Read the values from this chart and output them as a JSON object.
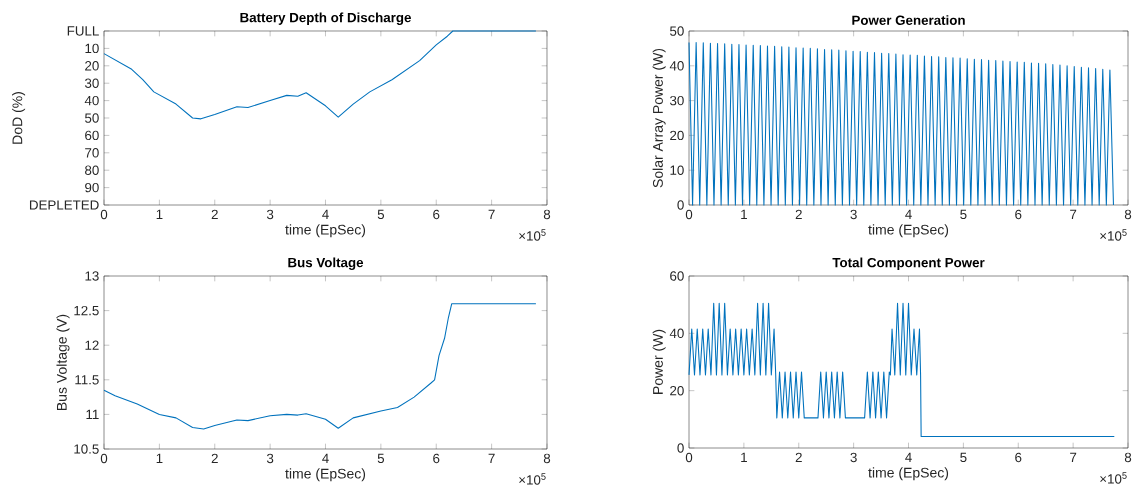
{
  "chart_data": [
    {
      "type": "line",
      "title": "Battery Depth of Discharge",
      "xlabel": "time (EpSec)",
      "ylabel": "DoD (%)",
      "color": "#0072bd",
      "xlim": [
        0,
        8
      ],
      "xticks": [
        0,
        1,
        2,
        3,
        4,
        5,
        6,
        7,
        8
      ],
      "ylim": [
        100,
        0
      ],
      "yticks": [
        {
          "value": 0,
          "label": "FULL"
        },
        10,
        20,
        30,
        40,
        50,
        60,
        70,
        80,
        90,
        {
          "value": 100,
          "label": "DEPLETED"
        }
      ],
      "annotations": [
        "×10$^{5}$"
      ],
      "x": [
        0,
        0.5,
        0.7,
        0.9,
        1.3,
        1.6,
        1.75,
        2.0,
        2.4,
        2.6,
        3.0,
        3.3,
        3.5,
        3.65,
        4.0,
        4.23,
        4.5,
        4.8,
        5.2,
        5.7,
        6.0,
        6.2,
        6.3,
        7.8
      ],
      "values": [
        13,
        22,
        28,
        35,
        42,
        50,
        50.5,
        48,
        43.5,
        44,
        40,
        37,
        37.5,
        35.5,
        43,
        49.5,
        42,
        35,
        28,
        17,
        8,
        3,
        0,
        0
      ]
    },
    {
      "type": "line",
      "title": "Power Generation",
      "xlabel": "time (EpSec)",
      "ylabel": "Solar Array Power (W)",
      "color": "#0072bd",
      "xlim": [
        0,
        8
      ],
      "xticks": [
        0,
        1,
        2,
        3,
        4,
        5,
        6,
        7,
        8
      ],
      "ylim": [
        0,
        50
      ],
      "yticks": [
        0,
        10,
        20,
        30,
        40,
        50
      ],
      "annotations": [
        "×10$^{5}$"
      ],
      "x": [
        0,
        0.065,
        0.13,
        0.195,
        0.26,
        0.325,
        0.39,
        0.455,
        0.52,
        0.585,
        0.65,
        0.715,
        0.78,
        0.845,
        0.91,
        0.975,
        1.04,
        1.105,
        1.17,
        1.235,
        1.3,
        1.365,
        1.43,
        1.495,
        1.56,
        1.625,
        1.69,
        1.755,
        1.82,
        1.885,
        1.95,
        2.015,
        2.08,
        2.145,
        2.21,
        2.275,
        2.34,
        2.405,
        2.47,
        2.535,
        2.6,
        2.665,
        2.73,
        2.795,
        2.86,
        2.925,
        2.99,
        3.055,
        3.12,
        3.185,
        3.25,
        3.315,
        3.38,
        3.445,
        3.51,
        3.575,
        3.64,
        3.705,
        3.77,
        3.835,
        3.9,
        3.965,
        4.03,
        4.095,
        4.16,
        4.225,
        4.29,
        4.355,
        4.42,
        4.485,
        4.55,
        4.615,
        4.68,
        4.745,
        4.81,
        4.875,
        4.94,
        5.005,
        5.07,
        5.135,
        5.2,
        5.265,
        5.33,
        5.395,
        5.46,
        5.525,
        5.59,
        5.655,
        5.72,
        5.785,
        5.85,
        5.915,
        5.98,
        6.045,
        6.11,
        6.175,
        6.24,
        6.305,
        6.37,
        6.435,
        6.5,
        6.565,
        6.63,
        6.695,
        6.76,
        6.825,
        6.89,
        6.955,
        7.02,
        7.085,
        7.15,
        7.215,
        7.28,
        7.345,
        7.41,
        7.475,
        7.54,
        7.605,
        7.67,
        7.735
      ],
      "values": [
        46.7,
        0,
        46.7,
        0,
        46.6,
        0,
        46.5,
        0,
        46.4,
        0,
        46.3,
        0,
        46.2,
        0,
        46.1,
        0,
        46.0,
        0,
        45.9,
        0,
        45.8,
        0,
        45.7,
        0,
        45.6,
        0,
        45.5,
        0,
        45.4,
        0,
        45.2,
        0,
        45.1,
        0,
        45.0,
        0,
        44.9,
        0,
        44.7,
        0,
        44.6,
        0,
        44.5,
        0,
        44.3,
        0,
        44.2,
        0,
        44.1,
        0,
        43.9,
        0,
        43.8,
        0,
        43.6,
        0,
        43.5,
        0,
        43.4,
        0,
        43.2,
        0,
        43.1,
        0,
        43.0,
        0,
        42.8,
        0,
        42.7,
        0,
        42.6,
        0,
        42.4,
        0,
        42.3,
        0,
        42.2,
        0,
        42.0,
        0,
        41.9,
        0,
        41.8,
        0,
        41.6,
        0,
        41.5,
        0,
        41.4,
        0,
        41.2,
        0,
        41.1,
        0,
        41.0,
        0,
        40.8,
        0,
        40.7,
        0,
        40.6,
        0,
        40.4,
        0,
        40.2,
        0,
        40.0,
        0,
        39.8,
        0,
        39.6,
        0,
        39.4,
        0,
        39.2,
        0,
        39.0,
        0,
        38.8,
        0
      ]
    },
    {
      "type": "line",
      "title": "Bus Voltage",
      "xlabel": "time (EpSec)",
      "ylabel": "Bus Voltage (V)",
      "color": "#0072bd",
      "xlim": [
        0,
        8
      ],
      "xticks": [
        0,
        1,
        2,
        3,
        4,
        5,
        6,
        7,
        8
      ],
      "ylim": [
        10.5,
        13
      ],
      "yticks": [
        10.5,
        11,
        11.5,
        12,
        12.5,
        13
      ],
      "annotations": [
        "×10$^{5}$"
      ],
      "x": [
        0,
        0.2,
        0.6,
        1.0,
        1.3,
        1.6,
        1.8,
        2.0,
        2.4,
        2.6,
        3.0,
        3.3,
        3.5,
        3.65,
        4.0,
        4.23,
        4.5,
        5.0,
        5.3,
        5.6,
        5.9,
        5.97,
        6.05,
        6.15,
        6.22,
        6.28,
        7.8
      ],
      "values": [
        11.35,
        11.27,
        11.15,
        11.0,
        10.95,
        10.81,
        10.79,
        10.84,
        10.92,
        10.91,
        10.98,
        11.0,
        10.99,
        11.01,
        10.93,
        10.8,
        10.95,
        11.05,
        11.1,
        11.25,
        11.45,
        11.5,
        11.85,
        12.1,
        12.4,
        12.6,
        12.6
      ]
    },
    {
      "type": "line",
      "title": "Total Component Power",
      "xlabel": "time (EpSec)",
      "ylabel": "Power (W)",
      "color": "#0072bd",
      "xlim": [
        0,
        8
      ],
      "xticks": [
        0,
        1,
        2,
        3,
        4,
        5,
        6,
        7,
        8
      ],
      "ylim": [
        0,
        60
      ],
      "yticks": [
        0,
        20,
        40,
        60
      ],
      "annotations": [
        "×10$^{5}$"
      ],
      "x": [
        0,
        0.05,
        0.1,
        0.15,
        0.2,
        0.25,
        0.3,
        0.35,
        0.4,
        0.45,
        0.5,
        0.55,
        0.6,
        0.65,
        0.7,
        0.75,
        0.8,
        0.85,
        0.9,
        0.95,
        1.0,
        1.05,
        1.1,
        1.15,
        1.2,
        1.25,
        1.3,
        1.35,
        1.4,
        1.45,
        1.5,
        1.55,
        1.58,
        1.6,
        1.65,
        1.7,
        1.75,
        1.8,
        1.85,
        1.9,
        1.95,
        2.0,
        2.05,
        2.1,
        2.35,
        2.4,
        2.45,
        2.5,
        2.55,
        2.6,
        2.65,
        2.7,
        2.75,
        2.8,
        2.85,
        3.2,
        3.25,
        3.3,
        3.35,
        3.4,
        3.45,
        3.5,
        3.55,
        3.6,
        3.65,
        3.67,
        3.7,
        3.75,
        3.8,
        3.85,
        3.9,
        3.95,
        4.0,
        4.05,
        4.1,
        4.15,
        4.2,
        4.22,
        4.23,
        7.75
      ],
      "values": [
        25.5,
        41.5,
        25.5,
        41.5,
        25.5,
        41.5,
        25.5,
        41.5,
        25.5,
        50.5,
        25.5,
        50.5,
        25.5,
        50.5,
        25.5,
        41.5,
        25.5,
        41.5,
        25.5,
        41.5,
        25.5,
        41.5,
        25.5,
        41.5,
        25.5,
        50.5,
        25.5,
        50.5,
        25.5,
        50.5,
        25.5,
        41.5,
        25.5,
        10.5,
        26.5,
        10.5,
        26.5,
        10.5,
        26.5,
        10.5,
        26.5,
        10.5,
        26.5,
        10.5,
        10.5,
        26.5,
        10.5,
        26.5,
        10.5,
        26.5,
        10.5,
        26.5,
        10.5,
        26.5,
        10.5,
        10.5,
        26.5,
        10.5,
        26.5,
        10.5,
        26.5,
        10.5,
        26.5,
        10.5,
        26.5,
        25.5,
        41.5,
        25.5,
        50.5,
        25.5,
        50.5,
        25.5,
        50.5,
        25.5,
        41.5,
        25.5,
        41.5,
        25.5,
        4,
        4
      ]
    }
  ]
}
